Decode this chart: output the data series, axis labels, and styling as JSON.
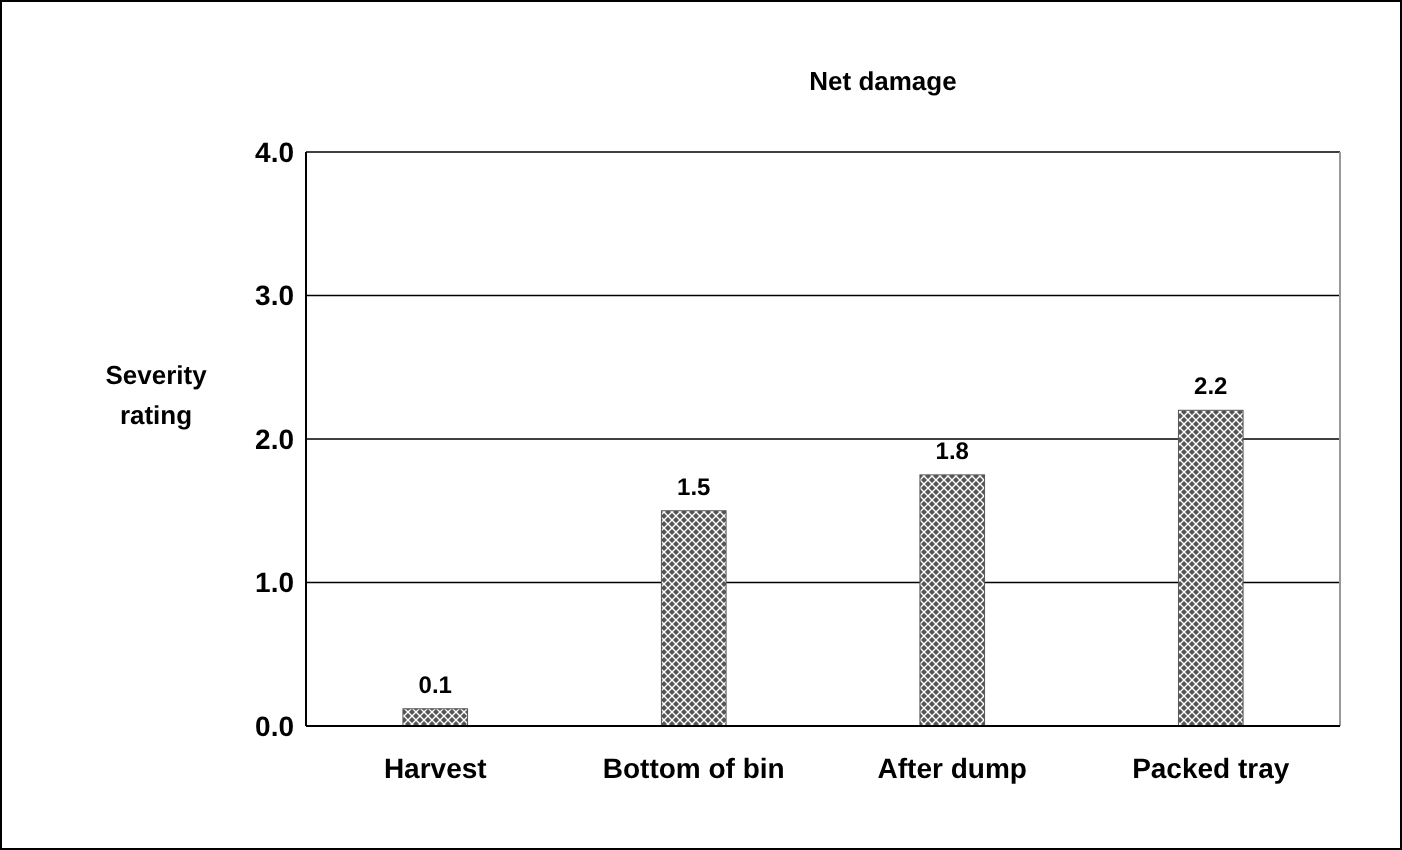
{
  "chart_data": {
    "type": "bar",
    "title": "Net damage",
    "ylabel": "Severity rating",
    "categories": [
      "Harvest",
      "Bottom of bin",
      "After dump",
      "Packed tray"
    ],
    "values": [
      0.12,
      1.5,
      1.75,
      2.2
    ],
    "value_labels": [
      "0.1",
      "1.5",
      "1.8",
      "2.2"
    ],
    "color": "#555555",
    "ylim": [
      0,
      4
    ],
    "yticks": [
      {
        "value": 0,
        "label": "0.0"
      },
      {
        "value": 1,
        "label": "1.0"
      },
      {
        "value": 2,
        "label": "2.0"
      },
      {
        "value": 3,
        "label": "3.0"
      },
      {
        "value": 4,
        "label": "4.0"
      }
    ],
    "grid": "y"
  }
}
